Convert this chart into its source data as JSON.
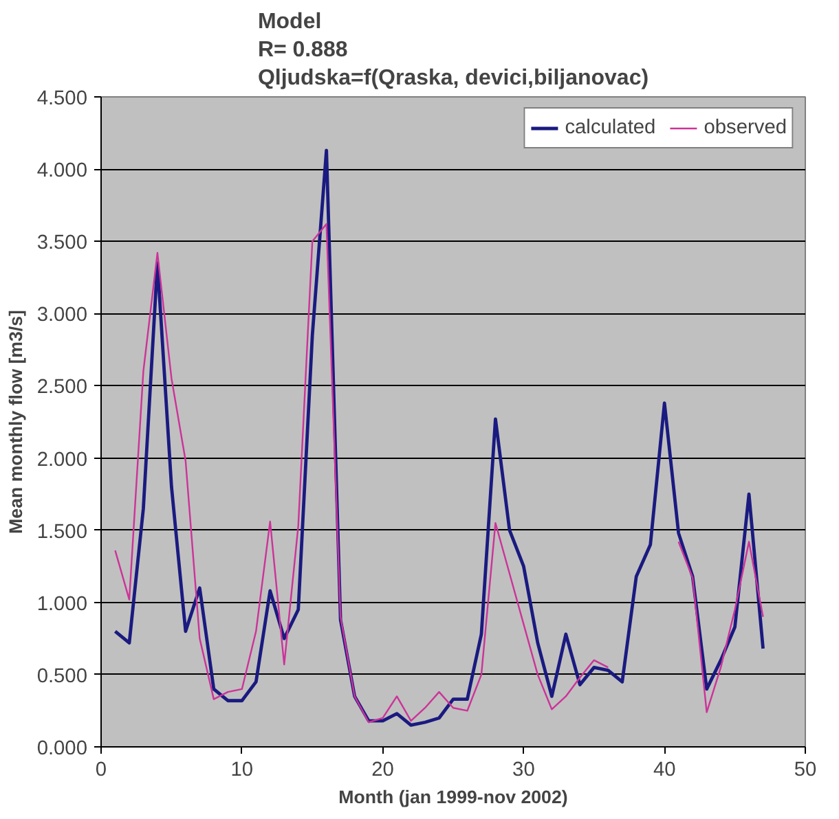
{
  "chart_data": {
    "type": "line",
    "title": "Model\nR= 0.888\nQljudska=f(Qraska, devici,biljanovac)",
    "xlabel": "Month (jan 1999-nov 2002)",
    "ylabel": "Mean monthly flow [m3/s]",
    "x": [
      1,
      2,
      3,
      4,
      5,
      6,
      7,
      8,
      9,
      10,
      11,
      12,
      13,
      14,
      15,
      16,
      17,
      18,
      19,
      20,
      21,
      22,
      23,
      24,
      25,
      26,
      27,
      28,
      29,
      30,
      31,
      32,
      33,
      34,
      35,
      36,
      37,
      38,
      39,
      40,
      41,
      42,
      43,
      44,
      45,
      46,
      47
    ],
    "series": [
      {
        "name": "calculated",
        "color": "#1a1a80",
        "values": [
          0.8,
          0.72,
          1.65,
          3.35,
          1.8,
          0.8,
          1.1,
          0.4,
          0.32,
          0.32,
          0.45,
          1.08,
          0.75,
          0.95,
          2.85,
          4.13,
          0.88,
          0.35,
          0.18,
          0.18,
          0.23,
          0.15,
          0.17,
          0.2,
          0.33,
          0.33,
          0.78,
          2.27,
          1.5,
          1.25,
          0.72,
          0.35,
          0.78,
          0.43,
          0.55,
          0.53,
          0.45,
          1.18,
          1.4,
          2.38,
          1.48,
          1.18,
          0.4,
          0.6,
          0.83,
          1.75,
          0.68
        ]
      },
      {
        "name": "observed",
        "color": "#cc3399",
        "values": [
          1.36,
          1.02,
          2.6,
          3.42,
          2.55,
          1.98,
          0.75,
          0.33,
          0.38,
          0.4,
          0.8,
          1.56,
          0.57,
          1.53,
          3.5,
          3.62,
          0.9,
          0.35,
          0.17,
          0.2,
          0.35,
          0.18,
          0.27,
          0.38,
          0.27,
          0.25,
          0.5,
          1.55,
          1.2,
          0.85,
          0.5,
          0.26,
          0.35,
          0.48,
          0.6,
          0.55,
          null,
          null,
          null,
          null,
          1.42,
          1.17,
          0.24,
          0.55,
          0.95,
          1.42,
          0.9
        ]
      }
    ],
    "xlim": [
      0,
      50
    ],
    "xticks": [
      0,
      10,
      20,
      30,
      40,
      50
    ],
    "ylim": [
      0,
      4.5
    ],
    "yticks": [
      {
        "value": 0,
        "label": "0.000"
      },
      {
        "value": 0.5,
        "label": "0.500"
      },
      {
        "value": 1,
        "label": "1.000"
      },
      {
        "value": 1.5,
        "label": "1.500"
      },
      {
        "value": 2,
        "label": "2.000"
      },
      {
        "value": 2.5,
        "label": "2.500"
      },
      {
        "value": 3,
        "label": "3.000"
      },
      {
        "value": 3.5,
        "label": "3.500"
      },
      {
        "value": 4,
        "label": "4.000"
      },
      {
        "value": 4.5,
        "label": "4.500"
      }
    ],
    "grid": "y",
    "legend": "top right",
    "line_style": "solid"
  }
}
